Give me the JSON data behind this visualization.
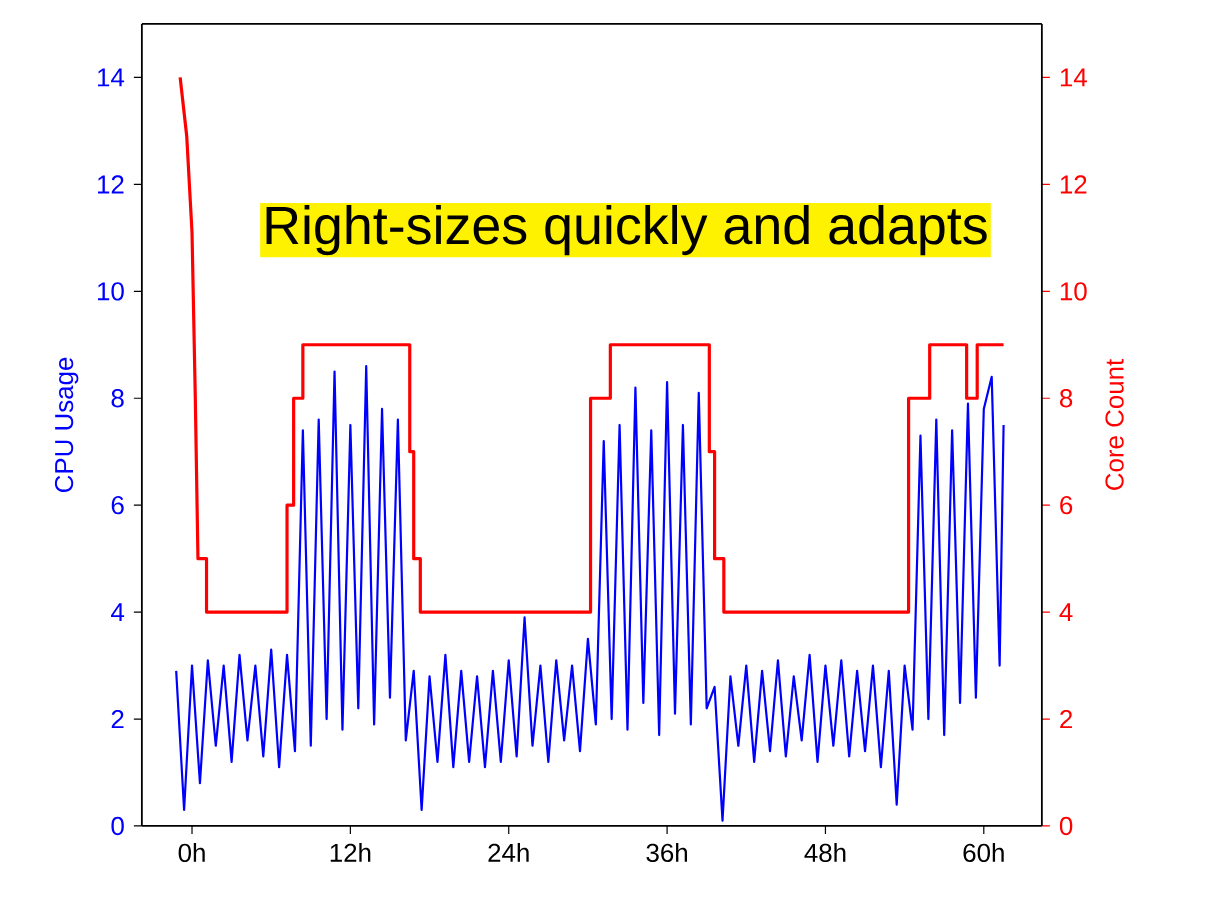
{
  "chart_data": {
    "type": "line",
    "ylabel": "CPU Usage",
    "y2label": "Core Count",
    "annotations": [
      "Right-sizes quickly and adapts"
    ],
    "xlim": [
      -3.8,
      64.4
    ],
    "xticks": [
      {
        "value": 0,
        "label": "0h"
      },
      {
        "value": 12,
        "label": "12h"
      },
      {
        "value": 24,
        "label": "24h"
      },
      {
        "value": 36,
        "label": "36h"
      },
      {
        "value": 48,
        "label": "48h"
      },
      {
        "value": 60,
        "label": "60h"
      }
    ],
    "ylim": [
      0,
      15
    ],
    "yticks": [
      0,
      2,
      4,
      6,
      8,
      10,
      12,
      14
    ],
    "y2lim": [
      0,
      15
    ],
    "y2ticks": [
      0,
      2,
      4,
      6,
      8,
      10,
      12,
      14
    ],
    "series": [
      {
        "color": "#0000ff",
        "x": [
          -1.2,
          -0.6,
          0.0,
          0.6,
          1.2,
          1.8,
          2.4,
          3.0,
          3.6,
          4.2,
          4.8,
          5.4,
          6.0,
          6.6,
          7.2,
          7.8,
          8.4,
          9.0,
          9.6,
          10.2,
          10.8,
          11.4,
          12.0,
          12.6,
          13.2,
          13.8,
          14.4,
          15.0,
          15.6,
          16.2,
          16.8,
          17.4,
          18.0,
          18.6,
          19.2,
          19.8,
          20.4,
          21.0,
          21.6,
          22.2,
          22.8,
          23.4,
          24.0,
          24.6,
          25.2,
          25.8,
          26.4,
          27.0,
          27.6,
          28.2,
          28.8,
          29.4,
          30.0,
          30.6,
          31.2,
          31.8,
          32.4,
          33.0,
          33.6,
          34.2,
          34.8,
          35.4,
          36.0,
          36.6,
          37.2,
          37.8,
          38.4,
          39.0,
          39.6,
          40.2,
          40.8,
          41.4,
          42.0,
          42.6,
          43.2,
          43.8,
          44.4,
          45.0,
          45.6,
          46.2,
          46.8,
          47.4,
          48.0,
          48.6,
          49.2,
          49.8,
          50.4,
          51.0,
          51.6,
          52.2,
          52.8,
          53.4,
          54.0,
          54.6,
          55.2,
          55.8,
          56.4,
          57.0,
          57.6,
          58.2,
          58.8,
          59.4,
          60.0,
          60.6,
          61.2,
          61.5
        ],
        "values": [
          2.9,
          0.3,
          3.0,
          0.8,
          3.1,
          1.5,
          3.0,
          1.2,
          3.2,
          1.6,
          3.0,
          1.3,
          3.3,
          1.1,
          3.2,
          1.4,
          7.4,
          1.5,
          7.6,
          2.0,
          8.5,
          1.8,
          7.5,
          2.2,
          8.6,
          1.9,
          7.8,
          2.4,
          7.6,
          1.6,
          2.9,
          0.3,
          2.8,
          1.2,
          3.2,
          1.1,
          2.9,
          1.2,
          2.8,
          1.1,
          2.9,
          1.2,
          3.1,
          1.3,
          3.9,
          1.5,
          3.0,
          1.2,
          3.1,
          1.6,
          3.0,
          1.4,
          3.5,
          1.9,
          7.2,
          2.0,
          7.5,
          1.8,
          8.2,
          2.3,
          7.4,
          1.7,
          8.3,
          2.1,
          7.5,
          1.9,
          8.1,
          2.2,
          2.6,
          0.1,
          2.8,
          1.5,
          3.0,
          1.2,
          2.9,
          1.4,
          3.1,
          1.3,
          2.8,
          1.6,
          3.2,
          1.2,
          3.0,
          1.5,
          3.1,
          1.3,
          2.9,
          1.4,
          3.0,
          1.1,
          2.9,
          0.4,
          3.0,
          1.8,
          7.3,
          2.0,
          7.6,
          1.7,
          7.4,
          2.3,
          7.9,
          2.4,
          7.8,
          8.4,
          3.0,
          7.5
        ]
      },
      {
        "color": "#ff0000",
        "axis": "y2",
        "x": [
          -0.9,
          -0.4,
          0.0,
          0.25,
          0.45,
          1.1,
          1.1,
          7.2,
          7.2,
          7.7,
          7.7,
          8.4,
          8.4,
          16.5,
          16.5,
          16.8,
          16.8,
          17.3,
          17.3,
          30.2,
          30.2,
          31.7,
          31.7,
          39.2,
          39.2,
          39.6,
          39.6,
          40.3,
          40.3,
          54.3,
          54.3,
          55.9,
          55.9,
          58.7,
          58.7,
          59.5,
          59.5,
          61.5
        ],
        "values": [
          14,
          12.9,
          11.1,
          8.0,
          5.0,
          5.0,
          4,
          4,
          6,
          6,
          8,
          8,
          9,
          9,
          7,
          7,
          5,
          5,
          4,
          4,
          8,
          8,
          9,
          9,
          7,
          7,
          5,
          5,
          4,
          4,
          8,
          8,
          9,
          9,
          8,
          8,
          9,
          9
        ]
      }
    ]
  }
}
